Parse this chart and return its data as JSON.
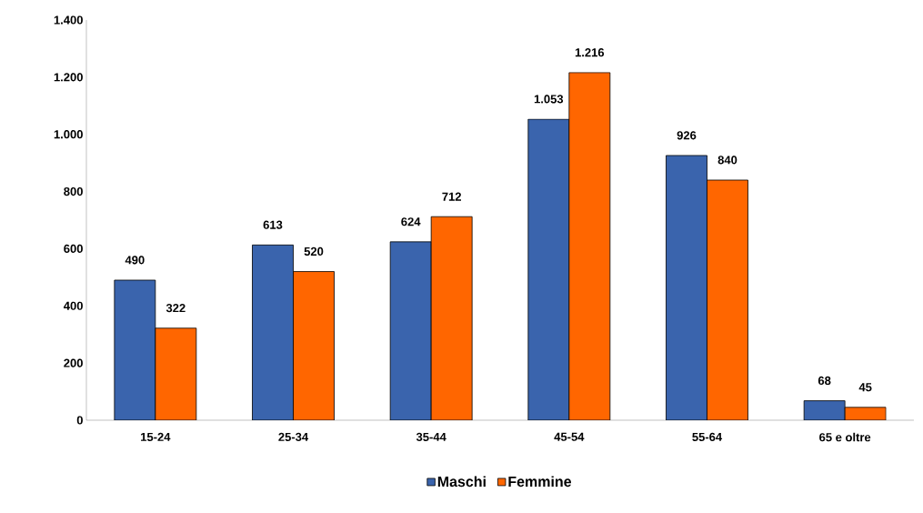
{
  "chart_data": {
    "type": "bar",
    "categories": [
      "15-24",
      "25-34",
      "35-44",
      "45-54",
      "55-64",
      "65 e oltre"
    ],
    "series": [
      {
        "name": "Maschi",
        "color": "#3a64ad",
        "values": [
          490,
          613,
          624,
          1053,
          926,
          68
        ],
        "value_labels": [
          "490",
          "613",
          "624",
          "1.053",
          "926",
          "68"
        ]
      },
      {
        "name": "Femmine",
        "color": "#ff6600",
        "values": [
          322,
          520,
          712,
          1216,
          840,
          45
        ],
        "value_labels": [
          "322",
          "520",
          "712",
          "1.216",
          "840",
          "45"
        ]
      }
    ],
    "ylim": [
      0,
      1400
    ],
    "yticks": [
      0,
      200,
      400,
      600,
      800,
      {
        "value": 1000,
        "label": "1.000"
      },
      {
        "value": 1200,
        "label": "1.200"
      },
      {
        "value": 1400,
        "label": "1.400"
      }
    ],
    "grid": false,
    "legend": "bottom"
  }
}
